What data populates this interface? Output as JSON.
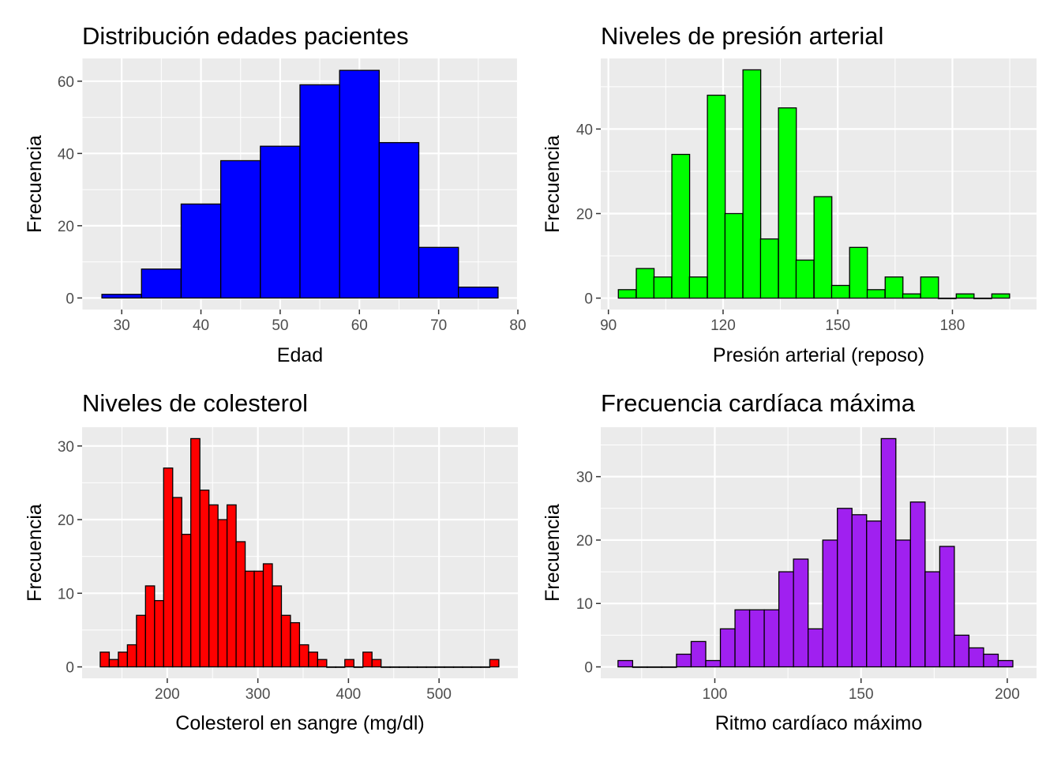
{
  "colors": {
    "panel_bg": "#EBEBEB",
    "grid": "#FFFFFF",
    "tick": "#333333",
    "bar_outline": "#000000"
  },
  "chart_data": [
    {
      "type": "bar",
      "subtype": "histogram",
      "title": "Distribución edades pacientes",
      "xlabel": "Edad",
      "ylabel": "Frecuencia",
      "fill": "#0000FF",
      "xlim": [
        25,
        80
      ],
      "ylim": [
        -3.2,
        66.3
      ],
      "x_ticks": [
        30,
        40,
        50,
        60,
        70,
        80
      ],
      "y_ticks": [
        0,
        20,
        40,
        60
      ],
      "bin_width": 5,
      "bins": [
        {
          "start": 27.5,
          "count": 1
        },
        {
          "start": 32.5,
          "count": 8
        },
        {
          "start": 37.5,
          "count": 26
        },
        {
          "start": 42.5,
          "count": 38
        },
        {
          "start": 47.5,
          "count": 42
        },
        {
          "start": 52.5,
          "count": 59
        },
        {
          "start": 57.5,
          "count": 63
        },
        {
          "start": 62.5,
          "count": 43
        },
        {
          "start": 67.5,
          "count": 14
        },
        {
          "start": 72.5,
          "count": 3
        }
      ]
    },
    {
      "type": "bar",
      "subtype": "histogram",
      "title": "Niveles de presión arterial",
      "xlabel": "Presión arterial (reposo)",
      "ylabel": "Frecuencia",
      "fill": "#00FF00",
      "xlim": [
        88,
        202
      ],
      "ylim": [
        -2.7,
        56.7
      ],
      "x_ticks": [
        90,
        120,
        150,
        180
      ],
      "y_ticks": [
        0,
        20,
        40
      ],
      "bin_width": 4.65,
      "bins": [
        {
          "start": 92.6,
          "count": 2
        },
        {
          "start": 97.3,
          "count": 7
        },
        {
          "start": 101.9,
          "count": 5
        },
        {
          "start": 106.6,
          "count": 34
        },
        {
          "start": 111.2,
          "count": 5
        },
        {
          "start": 115.9,
          "count": 48
        },
        {
          "start": 120.5,
          "count": 20
        },
        {
          "start": 125.2,
          "count": 54
        },
        {
          "start": 129.8,
          "count": 14
        },
        {
          "start": 134.5,
          "count": 45
        },
        {
          "start": 139.1,
          "count": 9
        },
        {
          "start": 143.8,
          "count": 24
        },
        {
          "start": 148.4,
          "count": 3
        },
        {
          "start": 153.1,
          "count": 12
        },
        {
          "start": 157.7,
          "count": 2
        },
        {
          "start": 162.4,
          "count": 5
        },
        {
          "start": 167.0,
          "count": 1
        },
        {
          "start": 171.7,
          "count": 5
        },
        {
          "start": 176.3,
          "count": 0
        },
        {
          "start": 181.0,
          "count": 1
        },
        {
          "start": 185.6,
          "count": 0
        },
        {
          "start": 190.3,
          "count": 1
        }
      ]
    },
    {
      "type": "bar",
      "subtype": "histogram",
      "title": "Niveles de colesterol",
      "xlabel": "Colesterol en sangre (mg/dl)",
      "ylabel": "Frecuencia",
      "fill": "#FF0000",
      "xlim": [
        106,
        587
      ],
      "ylim": [
        -1.55,
        32.55
      ],
      "x_ticks": [
        200,
        300,
        400,
        500
      ],
      "y_ticks": [
        0,
        10,
        20,
        30
      ],
      "bin_width": 10,
      "bins": [
        {
          "start": 126,
          "count": 2
        },
        {
          "start": 136,
          "count": 1
        },
        {
          "start": 146,
          "count": 2
        },
        {
          "start": 156,
          "count": 3
        },
        {
          "start": 166,
          "count": 7
        },
        {
          "start": 176,
          "count": 11
        },
        {
          "start": 186,
          "count": 9
        },
        {
          "start": 196,
          "count": 27
        },
        {
          "start": 206,
          "count": 23
        },
        {
          "start": 216,
          "count": 18
        },
        {
          "start": 226,
          "count": 31
        },
        {
          "start": 236,
          "count": 24
        },
        {
          "start": 246,
          "count": 22
        },
        {
          "start": 256,
          "count": 20
        },
        {
          "start": 266,
          "count": 22
        },
        {
          "start": 276,
          "count": 17
        },
        {
          "start": 286,
          "count": 13
        },
        {
          "start": 296,
          "count": 13
        },
        {
          "start": 306,
          "count": 14
        },
        {
          "start": 316,
          "count": 11
        },
        {
          "start": 326,
          "count": 7
        },
        {
          "start": 336,
          "count": 6
        },
        {
          "start": 346,
          "count": 3
        },
        {
          "start": 356,
          "count": 2
        },
        {
          "start": 366,
          "count": 1
        },
        {
          "start": 376,
          "count": 0
        },
        {
          "start": 386,
          "count": 0
        },
        {
          "start": 396,
          "count": 1
        },
        {
          "start": 406,
          "count": 0
        },
        {
          "start": 416,
          "count": 2
        },
        {
          "start": 426,
          "count": 1
        },
        {
          "start": 436,
          "count": 0
        },
        {
          "start": 446,
          "count": 0
        },
        {
          "start": 456,
          "count": 0
        },
        {
          "start": 466,
          "count": 0
        },
        {
          "start": 476,
          "count": 0
        },
        {
          "start": 486,
          "count": 0
        },
        {
          "start": 496,
          "count": 0
        },
        {
          "start": 506,
          "count": 0
        },
        {
          "start": 516,
          "count": 0
        },
        {
          "start": 526,
          "count": 0
        },
        {
          "start": 536,
          "count": 0
        },
        {
          "start": 546,
          "count": 0
        },
        {
          "start": 556,
          "count": 1
        }
      ]
    },
    {
      "type": "bar",
      "subtype": "histogram",
      "title": "Frecuencia cardíaca máxima",
      "xlabel": "Ritmo cardíaco máximo",
      "ylabel": "Frecuencia",
      "fill": "#A020F0",
      "xlim": [
        61,
        210
      ],
      "ylim": [
        -1.8,
        37.8
      ],
      "x_ticks": [
        100,
        150,
        200
      ],
      "y_ticks": [
        0,
        10,
        20,
        30
      ],
      "bin_width": 5,
      "bins": [
        {
          "start": 66.9,
          "count": 1
        },
        {
          "start": 71.9,
          "count": 0
        },
        {
          "start": 76.9,
          "count": 0
        },
        {
          "start": 81.9,
          "count": 0
        },
        {
          "start": 86.9,
          "count": 2
        },
        {
          "start": 91.9,
          "count": 4
        },
        {
          "start": 96.9,
          "count": 1
        },
        {
          "start": 101.9,
          "count": 6
        },
        {
          "start": 106.9,
          "count": 9
        },
        {
          "start": 111.9,
          "count": 9
        },
        {
          "start": 116.9,
          "count": 9
        },
        {
          "start": 121.9,
          "count": 15
        },
        {
          "start": 126.9,
          "count": 17
        },
        {
          "start": 131.9,
          "count": 6
        },
        {
          "start": 136.9,
          "count": 20
        },
        {
          "start": 141.9,
          "count": 25
        },
        {
          "start": 146.9,
          "count": 24
        },
        {
          "start": 151.9,
          "count": 23
        },
        {
          "start": 156.9,
          "count": 36
        },
        {
          "start": 161.9,
          "count": 20
        },
        {
          "start": 166.9,
          "count": 26
        },
        {
          "start": 171.9,
          "count": 15
        },
        {
          "start": 176.9,
          "count": 19
        },
        {
          "start": 181.9,
          "count": 5
        },
        {
          "start": 186.9,
          "count": 3
        },
        {
          "start": 191.9,
          "count": 2
        },
        {
          "start": 196.9,
          "count": 1
        }
      ]
    }
  ]
}
